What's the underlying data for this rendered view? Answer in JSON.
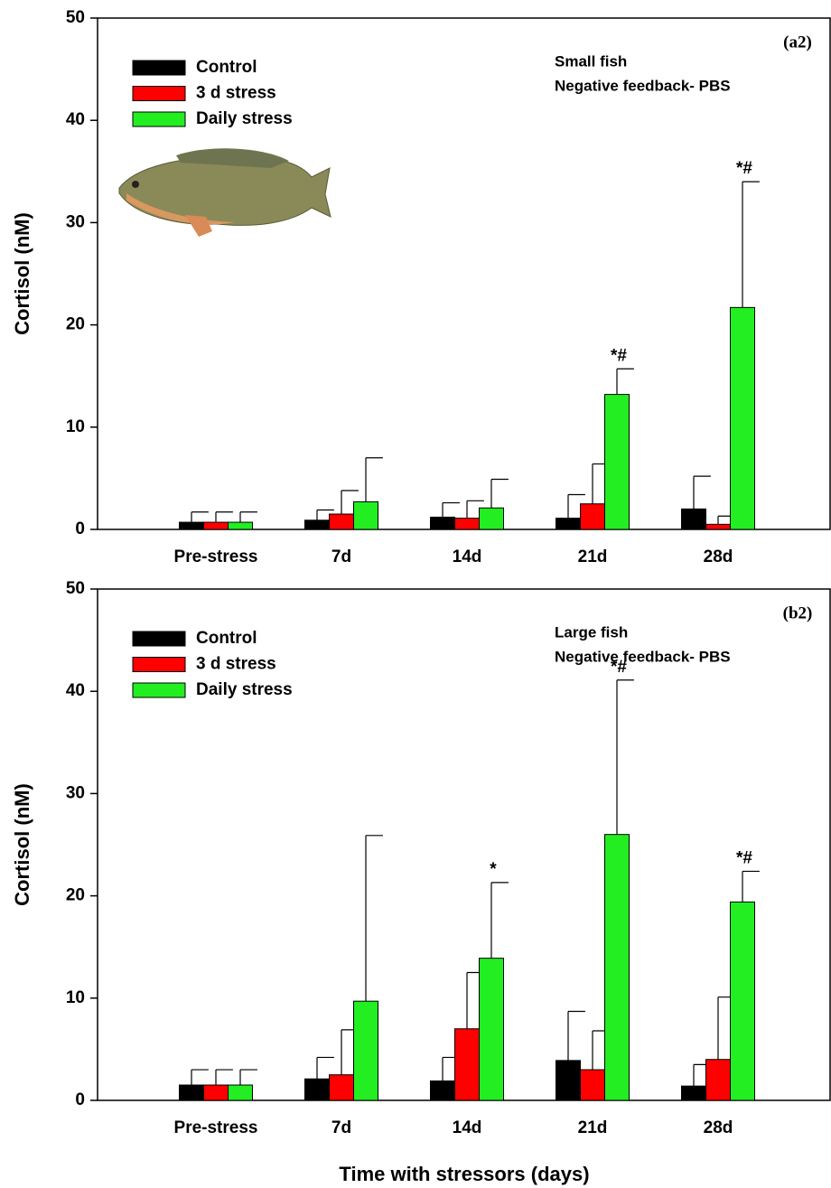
{
  "chart_data": [
    {
      "type": "bar",
      "panel_label": "(a2)",
      "notes": [
        "Small fish",
        "Negative feedback- PBS"
      ],
      "ylabel": "Cortisol (nM)",
      "categories": [
        "Pre-stress",
        "7d",
        "14d",
        "21d",
        "28d"
      ],
      "series": [
        {
          "name": "Control",
          "color": "#000000",
          "values": [
            0.7,
            0.9,
            1.2,
            1.1,
            2.0
          ],
          "errors": [
            1.0,
            1.0,
            1.4,
            2.3,
            3.2
          ]
        },
        {
          "name": "3 d stress",
          "color": "#ff0000",
          "values": [
            0.7,
            1.5,
            1.1,
            2.5,
            0.5
          ],
          "errors": [
            1.0,
            2.3,
            1.7,
            3.9,
            0.8
          ]
        },
        {
          "name": "Daily stress",
          "color": "#22ee22",
          "values": [
            0.7,
            2.7,
            2.1,
            13.2,
            21.7
          ],
          "errors": [
            1.0,
            4.3,
            2.8,
            2.5,
            12.3
          ],
          "significance": [
            null,
            null,
            null,
            "*#",
            "*#"
          ]
        }
      ],
      "ylim": [
        0,
        50
      ],
      "yticks": [
        0,
        10,
        20,
        30,
        40,
        50
      ],
      "legend": "upper left"
    },
    {
      "type": "bar",
      "panel_label": "(b2)",
      "notes": [
        "Large fish",
        "Negative feedback- PBS"
      ],
      "ylabel": "Cortisol (nM)",
      "xlabel": "Time with stressors (days)",
      "categories": [
        "Pre-stress",
        "7d",
        "14d",
        "21d",
        "28d"
      ],
      "series": [
        {
          "name": "Control",
          "color": "#000000",
          "values": [
            1.5,
            2.1,
            1.9,
            3.9,
            1.4
          ],
          "errors": [
            1.5,
            2.1,
            2.3,
            4.8,
            2.1
          ]
        },
        {
          "name": "3 d stress",
          "color": "#ff0000",
          "values": [
            1.5,
            2.5,
            7.0,
            3.0,
            4.0
          ],
          "errors": [
            1.5,
            4.4,
            5.5,
            3.8,
            6.1
          ]
        },
        {
          "name": "Daily stress",
          "color": "#22ee22",
          "values": [
            1.5,
            9.7,
            13.9,
            26.0,
            19.4
          ],
          "errors": [
            1.5,
            16.2,
            7.4,
            15.1,
            3.0
          ],
          "significance": [
            null,
            null,
            "*",
            "*#",
            "*#"
          ]
        }
      ],
      "ylim": [
        0,
        50
      ],
      "yticks": [
        0,
        10,
        20,
        30,
        40,
        50
      ],
      "legend": "upper left"
    }
  ]
}
